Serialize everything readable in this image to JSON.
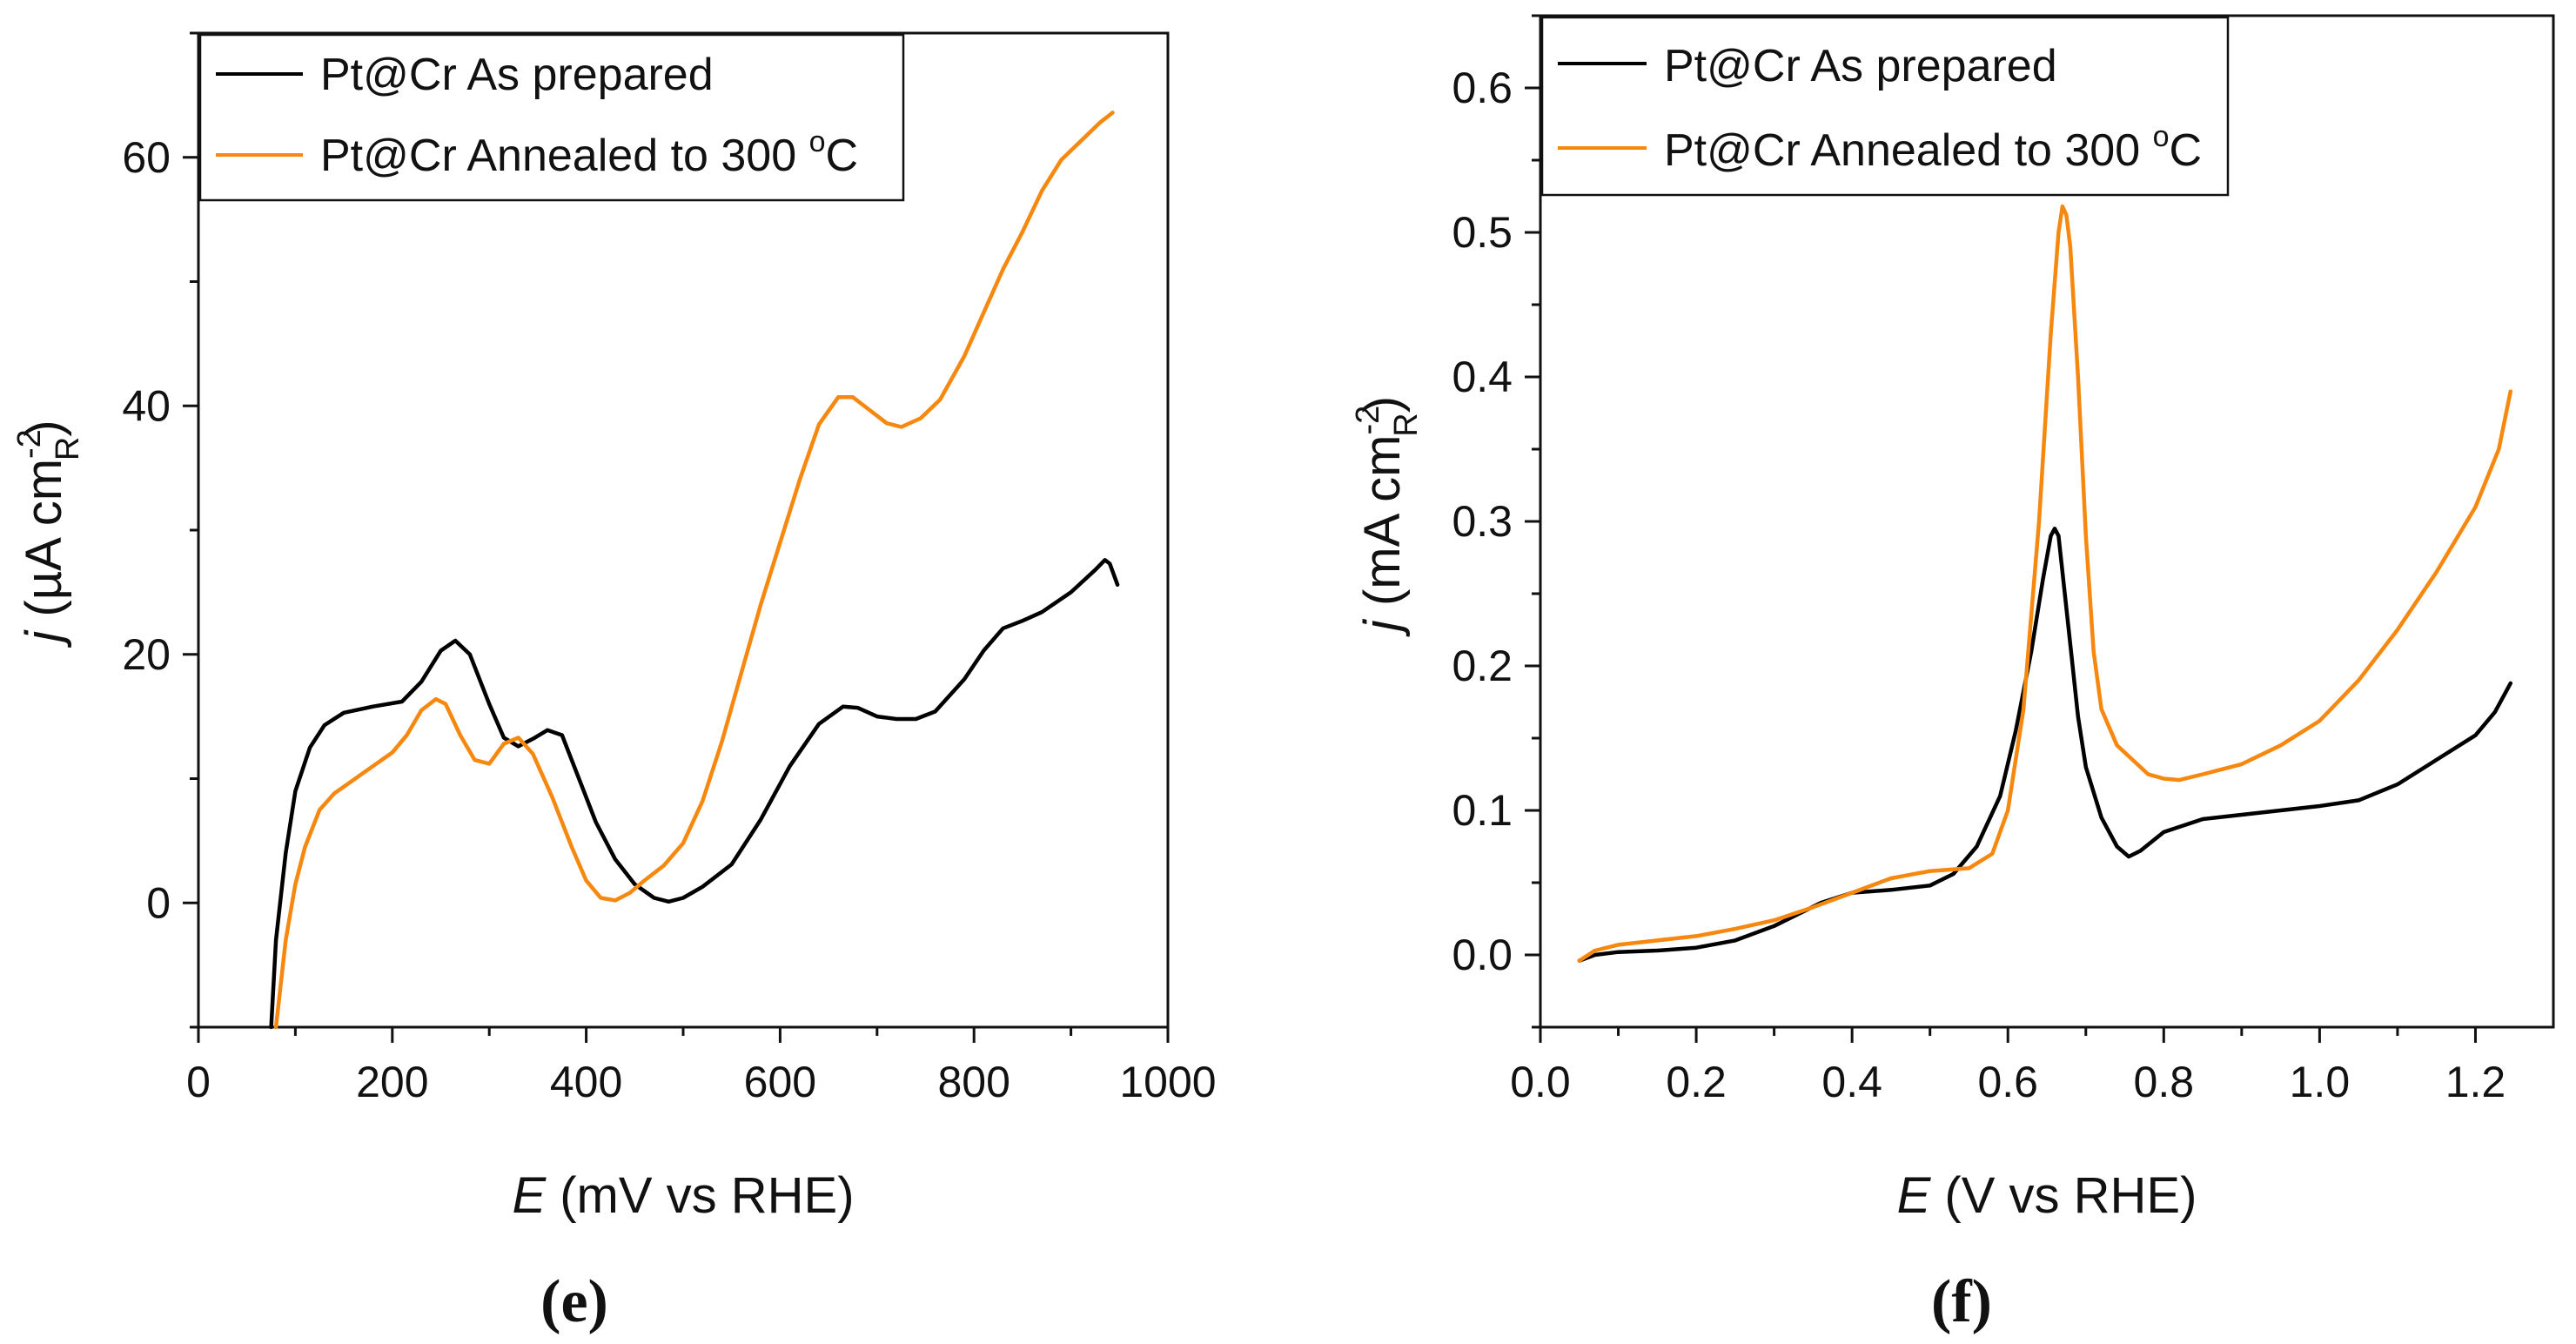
{
  "colors": {
    "series_black": "#000000",
    "series_orange": "#F7880F",
    "axis": "#111111",
    "background": "#ffffff"
  },
  "chart_data": [
    {
      "id": "e",
      "panel_label": "(e)",
      "type": "line",
      "xlabel_italic": "E",
      "xlabel_rest": " (mV vs RHE)",
      "ylabel_italic": "j",
      "ylabel_rest": " (µA cm",
      "ylabel_sup": "-2",
      "ylabel_sub": "R",
      "ylabel_close": ")",
      "xlim": [
        0,
        1000
      ],
      "ylim": [
        -10,
        70
      ],
      "xticks": [
        0,
        200,
        400,
        600,
        800,
        1000
      ],
      "xtick_labels": [
        "0",
        "200",
        "400",
        "600",
        "800",
        "1000"
      ],
      "yticks": [
        0,
        20,
        40,
        60
      ],
      "ytick_labels": [
        "0",
        "20",
        "40",
        "60"
      ],
      "legend_position": "top-left",
      "series": [
        {
          "name": "Pt@Cr As prepared",
          "legend_label": "Pt@Cr As prepared",
          "color": "#000000",
          "points": [
            [
              75,
              -10
            ],
            [
              80,
              -3
            ],
            [
              90,
              4
            ],
            [
              100,
              9
            ],
            [
              115,
              12.5
            ],
            [
              130,
              14.3
            ],
            [
              150,
              15.3
            ],
            [
              180,
              15.8
            ],
            [
              210,
              16.2
            ],
            [
              230,
              17.8
            ],
            [
              250,
              20.3
            ],
            [
              265,
              21.1
            ],
            [
              280,
              20
            ],
            [
              300,
              16
            ],
            [
              315,
              13.3
            ],
            [
              330,
              12.6
            ],
            [
              345,
              13.2
            ],
            [
              360,
              13.9
            ],
            [
              375,
              13.5
            ],
            [
              390,
              10.5
            ],
            [
              410,
              6.5
            ],
            [
              430,
              3.5
            ],
            [
              450,
              1.5
            ],
            [
              470,
              0.4
            ],
            [
              485,
              0.1
            ],
            [
              500,
              0.4
            ],
            [
              520,
              1.3
            ],
            [
              550,
              3.1
            ],
            [
              580,
              6.7
            ],
            [
              610,
              11
            ],
            [
              640,
              14.4
            ],
            [
              665,
              15.8
            ],
            [
              680,
              15.7
            ],
            [
              700,
              15
            ],
            [
              720,
              14.8
            ],
            [
              740,
              14.8
            ],
            [
              760,
              15.4
            ],
            [
              790,
              18
            ],
            [
              810,
              20.3
            ],
            [
              830,
              22.1
            ],
            [
              850,
              22.7
            ],
            [
              870,
              23.4
            ],
            [
              900,
              25
            ],
            [
              925,
              26.8
            ],
            [
              935,
              27.6
            ],
            [
              940,
              27.3
            ],
            [
              948,
              25.6
            ]
          ]
        },
        {
          "name": "Pt@Cr Annealed to 300 °C",
          "legend_label_main": "Pt@Cr Annealed to 300 ",
          "legend_label_sup": "o",
          "legend_label_tail": "C",
          "color": "#F7880F",
          "points": [
            [
              80,
              -10
            ],
            [
              90,
              -3
            ],
            [
              100,
              1.5
            ],
            [
              110,
              4.5
            ],
            [
              125,
              7.5
            ],
            [
              140,
              8.8
            ],
            [
              160,
              9.9
            ],
            [
              180,
              11
            ],
            [
              200,
              12.1
            ],
            [
              215,
              13.5
            ],
            [
              230,
              15.5
            ],
            [
              245,
              16.4
            ],
            [
              255,
              16
            ],
            [
              270,
              13.5
            ],
            [
              285,
              11.5
            ],
            [
              300,
              11.2
            ],
            [
              315,
              12.8
            ],
            [
              330,
              13.3
            ],
            [
              345,
              12
            ],
            [
              365,
              8.5
            ],
            [
              385,
              4.5
            ],
            [
              400,
              1.8
            ],
            [
              415,
              0.4
            ],
            [
              430,
              0.2
            ],
            [
              445,
              0.8
            ],
            [
              460,
              1.8
            ],
            [
              480,
              3
            ],
            [
              500,
              4.8
            ],
            [
              520,
              8.2
            ],
            [
              540,
              13
            ],
            [
              560,
              18.5
            ],
            [
              580,
              24
            ],
            [
              600,
              29
            ],
            [
              620,
              34
            ],
            [
              640,
              38.5
            ],
            [
              660,
              40.7
            ],
            [
              675,
              40.7
            ],
            [
              690,
              39.8
            ],
            [
              710,
              38.6
            ],
            [
              725,
              38.3
            ],
            [
              745,
              39
            ],
            [
              765,
              40.5
            ],
            [
              790,
              44
            ],
            [
              810,
              47.5
            ],
            [
              830,
              51
            ],
            [
              850,
              54
            ],
            [
              870,
              57.3
            ],
            [
              890,
              59.8
            ],
            [
              910,
              61.3
            ],
            [
              930,
              62.8
            ],
            [
              943,
              63.6
            ]
          ]
        }
      ]
    },
    {
      "id": "f",
      "panel_label": "(f)",
      "type": "line",
      "xlabel_italic": "E",
      "xlabel_rest": " (V vs RHE)",
      "ylabel_italic": "j",
      "ylabel_rest": " (mA cm",
      "ylabel_sup": "-2",
      "ylabel_sub": "R",
      "ylabel_close": ")",
      "xlim": [
        0.0,
        1.3
      ],
      "ylim": [
        -0.05,
        0.65
      ],
      "xticks": [
        0.0,
        0.2,
        0.4,
        0.6,
        0.8,
        1.0,
        1.2
      ],
      "xtick_labels": [
        "0.0",
        "0.2",
        "0.4",
        "0.6",
        "0.8",
        "1.0",
        "1.2"
      ],
      "yticks": [
        0.0,
        0.1,
        0.2,
        0.3,
        0.4,
        0.5,
        0.6
      ],
      "ytick_labels": [
        "0.0",
        "0.1",
        "0.2",
        "0.3",
        "0.4",
        "0.5",
        "0.6"
      ],
      "legend_position": "top-left",
      "series": [
        {
          "name": "Pt@Cr As prepared",
          "legend_label": "Pt@Cr  As prepared",
          "color": "#000000",
          "points": [
            [
              0.05,
              -0.004
            ],
            [
              0.07,
              0.0
            ],
            [
              0.1,
              0.002
            ],
            [
              0.15,
              0.003
            ],
            [
              0.2,
              0.005
            ],
            [
              0.25,
              0.01
            ],
            [
              0.3,
              0.02
            ],
            [
              0.33,
              0.028
            ],
            [
              0.36,
              0.036
            ],
            [
              0.4,
              0.043
            ],
            [
              0.45,
              0.045
            ],
            [
              0.5,
              0.048
            ],
            [
              0.53,
              0.056
            ],
            [
              0.56,
              0.075
            ],
            [
              0.59,
              0.11
            ],
            [
              0.61,
              0.155
            ],
            [
              0.63,
              0.21
            ],
            [
              0.645,
              0.26
            ],
            [
              0.655,
              0.29
            ],
            [
              0.66,
              0.295
            ],
            [
              0.665,
              0.29
            ],
            [
              0.67,
              0.265
            ],
            [
              0.68,
              0.215
            ],
            [
              0.69,
              0.165
            ],
            [
              0.7,
              0.13
            ],
            [
              0.72,
              0.095
            ],
            [
              0.74,
              0.075
            ],
            [
              0.755,
              0.068
            ],
            [
              0.77,
              0.072
            ],
            [
              0.8,
              0.085
            ],
            [
              0.85,
              0.094
            ],
            [
              0.9,
              0.097
            ],
            [
              0.95,
              0.1
            ],
            [
              1.0,
              0.103
            ],
            [
              1.05,
              0.107
            ],
            [
              1.1,
              0.118
            ],
            [
              1.15,
              0.135
            ],
            [
              1.2,
              0.152
            ],
            [
              1.225,
              0.168
            ],
            [
              1.245,
              0.188
            ]
          ]
        },
        {
          "name": "Pt@Cr Annealed to 300 °C",
          "legend_label_main": "Pt@Cr  Annealed to 300 ",
          "legend_label_sup": "o",
          "legend_label_tail": "C",
          "color": "#F7880F",
          "points": [
            [
              0.05,
              -0.004
            ],
            [
              0.07,
              0.003
            ],
            [
              0.1,
              0.007
            ],
            [
              0.15,
              0.01
            ],
            [
              0.2,
              0.013
            ],
            [
              0.25,
              0.018
            ],
            [
              0.3,
              0.024
            ],
            [
              0.35,
              0.033
            ],
            [
              0.4,
              0.043
            ],
            [
              0.45,
              0.053
            ],
            [
              0.5,
              0.058
            ],
            [
              0.55,
              0.06
            ],
            [
              0.58,
              0.07
            ],
            [
              0.6,
              0.1
            ],
            [
              0.62,
              0.17
            ],
            [
              0.64,
              0.3
            ],
            [
              0.655,
              0.43
            ],
            [
              0.665,
              0.5
            ],
            [
              0.67,
              0.518
            ],
            [
              0.675,
              0.512
            ],
            [
              0.68,
              0.49
            ],
            [
              0.69,
              0.4
            ],
            [
              0.7,
              0.29
            ],
            [
              0.71,
              0.21
            ],
            [
              0.72,
              0.17
            ],
            [
              0.74,
              0.145
            ],
            [
              0.76,
              0.135
            ],
            [
              0.78,
              0.125
            ],
            [
              0.8,
              0.122
            ],
            [
              0.82,
              0.121
            ],
            [
              0.85,
              0.125
            ],
            [
              0.9,
              0.132
            ],
            [
              0.95,
              0.145
            ],
            [
              1.0,
              0.162
            ],
            [
              1.05,
              0.19
            ],
            [
              1.1,
              0.225
            ],
            [
              1.15,
              0.265
            ],
            [
              1.2,
              0.31
            ],
            [
              1.23,
              0.35
            ],
            [
              1.245,
              0.39
            ]
          ]
        }
      ]
    }
  ]
}
